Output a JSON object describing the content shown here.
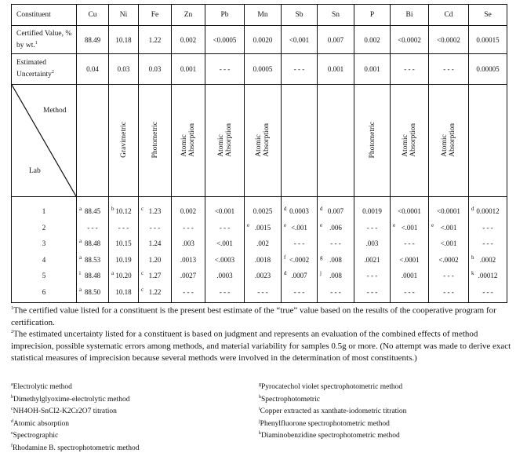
{
  "columns": [
    "Cu",
    "Ni",
    "Fe",
    "Zn",
    "Pb",
    "Mn",
    "Sb",
    "Sn",
    "P",
    "Bi",
    "Cd",
    "Se"
  ],
  "header_label": "Constituent",
  "certified": {
    "label": "Certified Value, % by wt.",
    "note": "1",
    "values": [
      "88.49",
      "10.18",
      "1.22",
      "0.002",
      "<0.0005",
      "0.0020",
      "<0.001",
      "0.007",
      "0.002",
      "<0.0002",
      "<0.0002",
      "0.00015"
    ]
  },
  "uncertainty": {
    "label": "Estimated Uncertainty",
    "note": "2",
    "values": [
      "0.04",
      "0.03",
      "0.03",
      "0.001",
      "- - -",
      "0.0005",
      "- - -",
      "0.001",
      "0.001",
      "- - -",
      "- - -",
      "0.00005"
    ]
  },
  "method_row": {
    "method_label": "Method",
    "lab_label": "Lab",
    "methods": [
      "",
      "Gravimetric",
      "Photometric",
      "Atomic\nAbsorption",
      "Atomic\nAbsorption",
      "Atomic\nAbsorption",
      "",
      "",
      "Photometric",
      "Atomic\nAbsorption",
      "Atomic\nAbsorption",
      ""
    ]
  },
  "labs": [
    "1",
    "2",
    "3",
    "4",
    "5",
    "6"
  ],
  "results": [
    [
      [
        "a",
        "88.45"
      ],
      [
        "",
        "- - -"
      ],
      [
        "a",
        "88.48"
      ],
      [
        "a",
        "88.53"
      ],
      [
        "i",
        "88.48"
      ],
      [
        "a",
        "88.50"
      ]
    ],
    [
      [
        "b",
        "10.12"
      ],
      [
        "",
        "- - -"
      ],
      [
        "",
        "10.15"
      ],
      [
        "",
        "10.19"
      ],
      [
        "a",
        "10.20"
      ],
      [
        "",
        "10.18"
      ]
    ],
    [
      [
        "c",
        "1.23"
      ],
      [
        "",
        "- - -"
      ],
      [
        "",
        "1.24"
      ],
      [
        "",
        "1.20"
      ],
      [
        "c",
        "1.27"
      ],
      [
        "c",
        "1.22"
      ]
    ],
    [
      [
        "",
        "0.002"
      ],
      [
        "",
        "- - -"
      ],
      [
        "",
        ".003"
      ],
      [
        "",
        ".0013"
      ],
      [
        "",
        ".0027"
      ],
      [
        "",
        "- - -"
      ]
    ],
    [
      [
        "",
        "<0.001"
      ],
      [
        "",
        "- - -"
      ],
      [
        "",
        "<.001"
      ],
      [
        "",
        "<.0003"
      ],
      [
        "",
        ".0003"
      ],
      [
        "",
        "- - -"
      ]
    ],
    [
      [
        "",
        "0.0025"
      ],
      [
        "e",
        ".0015"
      ],
      [
        "",
        ".002"
      ],
      [
        "",
        ".0018"
      ],
      [
        "",
        ".0023"
      ],
      [
        "",
        "- - -"
      ]
    ],
    [
      [
        "d",
        "0.0003"
      ],
      [
        "e",
        "<.001"
      ],
      [
        "",
        "- - -"
      ],
      [
        "f",
        "<.0002"
      ],
      [
        "d",
        ".0007"
      ],
      [
        "",
        "- - -"
      ]
    ],
    [
      [
        "d",
        "0.007"
      ],
      [
        "e",
        ".006"
      ],
      [
        "",
        "- - -"
      ],
      [
        "g",
        ".008"
      ],
      [
        "j",
        ".008"
      ],
      [
        "",
        "- - -"
      ]
    ],
    [
      [
        "",
        "0.0019"
      ],
      [
        "",
        "- - -"
      ],
      [
        "",
        ".003"
      ],
      [
        "",
        ".0021"
      ],
      [
        "",
        "- - -"
      ],
      [
        "",
        "- - -"
      ]
    ],
    [
      [
        "",
        "<0.0001"
      ],
      [
        "e",
        "<.001"
      ],
      [
        "",
        "- - -"
      ],
      [
        "",
        "<.0001"
      ],
      [
        "",
        ".0001"
      ],
      [
        "",
        "- - -"
      ]
    ],
    [
      [
        "",
        "<0.0001"
      ],
      [
        "e",
        "<.001"
      ],
      [
        "",
        "<.001"
      ],
      [
        "",
        "<.0002"
      ],
      [
        "",
        "- - -"
      ],
      [
        "",
        "- - -"
      ]
    ],
    [
      [
        "d",
        "0.00012"
      ],
      [
        "",
        "- - -"
      ],
      [
        "",
        "- - -"
      ],
      [
        "h",
        ".0002"
      ],
      [
        "k",
        ".00012"
      ],
      [
        "",
        "- - -"
      ]
    ]
  ],
  "footnotes": {
    "n1": {
      "mark": "1",
      "text": "The certified value listed for a constituent is the present best estimate of the “true” value based on the results of the cooperative program for certification."
    },
    "n2": {
      "mark": "2",
      "text": "The estimated uncertainty listed for a constituent is based on judgment and represents an evaluation of the combined effects of method imprecision, possible systematic errors among methods, and material variability for samples 0.5g or more. (No attempt was made to derive exact statistical measures of imprecision because several methods were involved in the determination of most constituents.)"
    },
    "left": [
      [
        "a",
        "Electrolytic method"
      ],
      [
        "b",
        "Dimethylglyoxime-electrolytic method"
      ],
      [
        "c",
        "NH4OH-SnCl2-K2Cr2O7 titration"
      ],
      [
        "d",
        "Atomic absorption"
      ],
      [
        "e",
        "Spectrographic"
      ],
      [
        "f",
        "Rhodamine B. spectrophotometric method"
      ]
    ],
    "right": [
      [
        "g",
        "Pyrocatechol violet spectrophotometric method"
      ],
      [
        "h",
        "Spectrophotometric"
      ],
      [
        "i",
        "Copper extracted as xanthate-iodometric titration"
      ],
      [
        "j",
        "Phenylfluorone spectrophotometric method"
      ],
      [
        "k",
        "Diaminobenzidine spectrophotometric method"
      ]
    ]
  }
}
